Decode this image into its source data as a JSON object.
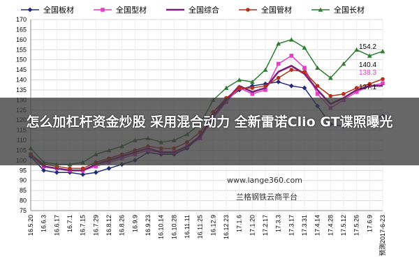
{
  "overlay": {
    "title": "怎么加杠杆资金炒股 采用混合动力 全新雷诺Clio GT谍照曝光"
  },
  "watermark": {
    "url": "www.lange360.com",
    "platform": "兰格钢铁云商平台"
  },
  "chart_data": {
    "type": "line",
    "x": [
      "16.5.20",
      "16.6.3",
      "16.6.17",
      "16.7.1",
      "16.7.15",
      "16.7.29",
      "16.8.12",
      "16.8.26",
      "16.9.9",
      "16.9.23",
      "16.10.14",
      "16.10.28",
      "16.11.11",
      "16.11.25",
      "16.12.9",
      "16.12.23",
      "17.1.6",
      "17.1.20",
      "17.2.17",
      "17.3.3",
      "17.3.17",
      "17.3.31",
      "17.4.14",
      "17.4.28",
      "17.5.12",
      "17.5.26",
      "17.6.9",
      "预测2017-6-23"
    ],
    "ylim": [
      75,
      170
    ],
    "yticks": [
      75,
      80,
      85,
      90,
      95,
      100,
      105,
      110,
      115,
      120,
      125,
      130,
      135,
      140,
      145,
      150,
      155,
      160,
      165,
      170
    ],
    "grid": true,
    "legend_position": "top",
    "end_labels": [
      {
        "text": "154.2",
        "color": "#000000"
      },
      {
        "text": "140.4",
        "color": "#000000"
      },
      {
        "text": "138.3",
        "color": "#e63cc8"
      },
      {
        "text": "137.1",
        "color": "#000000"
      }
    ],
    "series": [
      {
        "name": "全国板材",
        "color": "#1f2a7a",
        "marker": "diamond",
        "values": [
          102,
          95,
          94,
          94,
          93,
          94,
          96,
          98,
          100,
          104,
          103,
          103,
          106,
          112,
          124,
          130,
          135,
          137,
          138,
          139,
          137,
          136,
          127,
          118,
          117,
          119,
          120,
          122
        ]
      },
      {
        "name": "全国型材",
        "color": "#e63cc8",
        "marker": "square",
        "values": [
          103,
          97,
          96,
          95,
          95,
          97,
          99,
          101,
          103,
          105,
          104,
          104,
          107,
          111,
          121,
          129,
          136,
          133,
          135,
          148,
          152,
          146,
          133,
          126,
          130,
          134,
          137,
          138.3
        ]
      },
      {
        "name": "全国综合",
        "color": "#7a1f7a",
        "marker": "none",
        "values": [
          103,
          97,
          96,
          95,
          95,
          98,
          100,
          102,
          104,
          106,
          104,
          104,
          107,
          112,
          122,
          130,
          137,
          134,
          136,
          144,
          147,
          143,
          135,
          128,
          131,
          135,
          137,
          137.1
        ]
      },
      {
        "name": "全国管材",
        "color": "#b5301c",
        "marker": "circle",
        "values": [
          103,
          98,
          97,
          96,
          96,
          99,
          101,
          103,
          105,
          107,
          106,
          106,
          109,
          114,
          124,
          131,
          136,
          136,
          137,
          141,
          145,
          144,
          137,
          132,
          133,
          136,
          138,
          140.4
        ]
      },
      {
        "name": "全国长材",
        "color": "#2e7d32",
        "marker": "triangle",
        "values": [
          106,
          99,
          98,
          98,
          99,
          103,
          105,
          107,
          110,
          111,
          109,
          110,
          113,
          118,
          130,
          136,
          140,
          139,
          145,
          158,
          160,
          156,
          146,
          141,
          148,
          155,
          152,
          154.2
        ]
      }
    ]
  }
}
